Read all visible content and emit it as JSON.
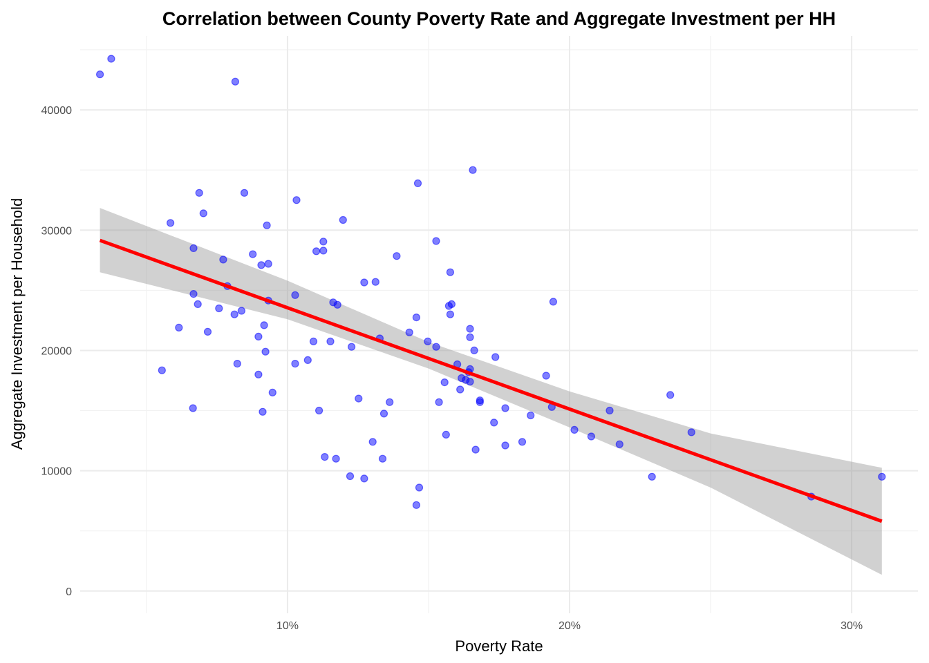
{
  "chart_data": {
    "type": "scatter",
    "title": "Correlation between County Poverty Rate and Aggregate Investment per HH",
    "xlabel": "Poverty Rate",
    "ylabel": "Aggregate Investment per Household",
    "xlim": [
      0.0265,
      0.3235
    ],
    "ylim": [
      -1850,
      46150
    ],
    "x_ticks": [
      0.1,
      0.2,
      0.3
    ],
    "x_tick_labels": [
      "10%",
      "20%",
      "30%"
    ],
    "y_ticks": [
      0,
      10000,
      20000,
      30000,
      40000
    ],
    "y_tick_labels": [
      "0",
      "10000",
      "20000",
      "30000",
      "40000"
    ],
    "grid": true,
    "legend": "none",
    "point_color": "#0000ff",
    "line_color": "#ff0000",
    "band_color": "#999999",
    "points": [
      [
        0.0335,
        42950
      ],
      [
        0.0375,
        44250
      ],
      [
        0.0815,
        42350
      ],
      [
        0.0555,
        18350
      ],
      [
        0.0585,
        30600
      ],
      [
        0.0615,
        21900
      ],
      [
        0.0665,
        15200
      ],
      [
        0.0667,
        28500
      ],
      [
        0.0667,
        24700
      ],
      [
        0.0682,
        23850
      ],
      [
        0.0687,
        33100
      ],
      [
        0.0702,
        31400
      ],
      [
        0.0717,
        21550
      ],
      [
        0.0757,
        23500
      ],
      [
        0.0772,
        27550
      ],
      [
        0.0787,
        25350
      ],
      [
        0.0812,
        23000
      ],
      [
        0.0822,
        18900
      ],
      [
        0.0837,
        23300
      ],
      [
        0.0847,
        33100
      ],
      [
        0.0877,
        28000
      ],
      [
        0.0897,
        21150
      ],
      [
        0.0897,
        18000
      ],
      [
        0.0907,
        27100
      ],
      [
        0.0912,
        14900
      ],
      [
        0.0917,
        22100
      ],
      [
        0.0922,
        19900
      ],
      [
        0.0927,
        30400
      ],
      [
        0.0932,
        27200
      ],
      [
        0.0932,
        24150
      ],
      [
        0.0947,
        16500
      ],
      [
        0.1027,
        24600
      ],
      [
        0.1027,
        18900
      ],
      [
        0.1032,
        32500
      ],
      [
        0.1072,
        19200
      ],
      [
        0.1092,
        20750
      ],
      [
        0.1102,
        28250
      ],
      [
        0.1112,
        15000
      ],
      [
        0.1127,
        29050
      ],
      [
        0.1127,
        28300
      ],
      [
        0.1132,
        11150
      ],
      [
        0.1152,
        20750
      ],
      [
        0.1162,
        24000
      ],
      [
        0.1172,
        11000
      ],
      [
        0.1177,
        23800
      ],
      [
        0.1197,
        30850
      ],
      [
        0.1222,
        9550
      ],
      [
        0.1227,
        20300
      ],
      [
        0.1252,
        16000
      ],
      [
        0.1272,
        9350
      ],
      [
        0.1272,
        25650
      ],
      [
        0.1302,
        12400
      ],
      [
        0.1312,
        25700
      ],
      [
        0.1327,
        21000
      ],
      [
        0.1337,
        11000
      ],
      [
        0.1342,
        14750
      ],
      [
        0.1362,
        15700
      ],
      [
        0.1387,
        27850
      ],
      [
        0.1432,
        21500
      ],
      [
        0.1457,
        7150
      ],
      [
        0.1457,
        22750
      ],
      [
        0.1462,
        33900
      ],
      [
        0.1467,
        8600
      ],
      [
        0.1497,
        20750
      ],
      [
        0.1527,
        29100
      ],
      [
        0.1527,
        20300
      ],
      [
        0.1537,
        15700
      ],
      [
        0.1557,
        17350
      ],
      [
        0.1562,
        13000
      ],
      [
        0.1572,
        23700
      ],
      [
        0.1577,
        23000
      ],
      [
        0.1577,
        26500
      ],
      [
        0.1582,
        23850
      ],
      [
        0.1602,
        18850
      ],
      [
        0.1612,
        16750
      ],
      [
        0.1617,
        17700
      ],
      [
        0.1632,
        17550
      ],
      [
        0.1642,
        18200
      ],
      [
        0.1647,
        18450
      ],
      [
        0.1647,
        17400
      ],
      [
        0.1647,
        21100
      ],
      [
        0.1647,
        21800
      ],
      [
        0.1657,
        35000
      ],
      [
        0.1662,
        20000
      ],
      [
        0.1667,
        11750
      ],
      [
        0.1682,
        15850
      ],
      [
        0.1682,
        15700
      ],
      [
        0.1732,
        14000
      ],
      [
        0.1737,
        19450
      ],
      [
        0.1772,
        15200
      ],
      [
        0.1772,
        12100
      ],
      [
        0.1832,
        12400
      ],
      [
        0.1862,
        14600
      ],
      [
        0.1917,
        17900
      ],
      [
        0.1937,
        15300
      ],
      [
        0.1942,
        24050
      ],
      [
        0.2017,
        13400
      ],
      [
        0.2077,
        12850
      ],
      [
        0.2142,
        15000
      ],
      [
        0.2177,
        12200
      ],
      [
        0.2292,
        9500
      ],
      [
        0.2357,
        16300
      ],
      [
        0.2432,
        13200
      ],
      [
        0.2857,
        7850
      ],
      [
        0.3107,
        9500
      ]
    ],
    "fit_line": {
      "x": [
        0.0335,
        0.3107
      ],
      "y": [
        29150,
        5800
      ]
    },
    "confidence_band": {
      "x": [
        0.0335,
        0.1,
        0.15,
        0.2,
        0.25,
        0.3107
      ],
      "lower": [
        26500,
        22600,
        18500,
        13600,
        8600,
        1350
      ],
      "upper": [
        31850,
        25800,
        20700,
        16600,
        13100,
        10250
      ]
    }
  }
}
